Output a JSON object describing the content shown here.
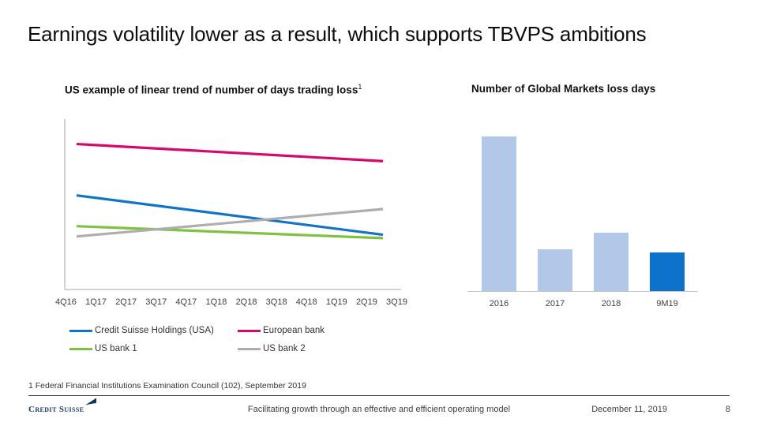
{
  "slide": {
    "title": "Earnings volatility lower as a result, which supports TBVPS ambitions",
    "footnote": "1 Federal Financial Institutions Examination Council (102), September 2019",
    "footer": {
      "logo_text": "Credit Suisse",
      "center_text": "Facilitating growth through an effective and efficient operating model",
      "date": "December 11, 2019",
      "page_number": "8"
    }
  },
  "colors": {
    "cs_blue": "#1274c4",
    "european_pink": "#d6086e",
    "us_bank1_green": "#7fc241",
    "us_bank2_gray": "#aeaeb0",
    "bar_light_blue": "#b1c8e8",
    "bar_dark_blue": "#0b71c9",
    "axis_gray": "#c4c4c4"
  },
  "chart_data": [
    {
      "type": "line",
      "title": "US example of linear trend of number of days trading loss",
      "title_superscript": "1",
      "categories": [
        "4Q16",
        "1Q17",
        "2Q17",
        "3Q17",
        "4Q17",
        "1Q18",
        "2Q18",
        "3Q18",
        "4Q18",
        "1Q19",
        "2Q19",
        "3Q19"
      ],
      "series": [
        {
          "name": "Credit Suisse Holdings (USA)",
          "color": "#1274c4",
          "values": [
            55,
            32
          ]
        },
        {
          "name": "European bank",
          "color": "#d6086e",
          "values": [
            85,
            75
          ]
        },
        {
          "name": "US bank 1",
          "color": "#7fc241",
          "values": [
            37,
            30
          ]
        },
        {
          "name": "US bank 2",
          "color": "#aeaeb0",
          "values": [
            31,
            47
          ]
        }
      ],
      "ylim": [
        0,
        100
      ],
      "y_axis_labels": "none (relative scale, straight linear trend lines from 4Q16 to 3Q19)",
      "legend_position": "below",
      "grid": "off"
    },
    {
      "type": "bar",
      "title": "Number of Global Markets loss days",
      "categories": [
        "2016",
        "2017",
        "2018",
        "9M19"
      ],
      "values": [
        100,
        27,
        38,
        25
      ],
      "bar_colors": [
        "#b1c8e8",
        "#b1c8e8",
        "#b1c8e8",
        "#0b71c9"
      ],
      "ylim": [
        0,
        112
      ],
      "y_axis_labels": "none (relative heights, no value labels shown)",
      "grid": "off"
    }
  ]
}
